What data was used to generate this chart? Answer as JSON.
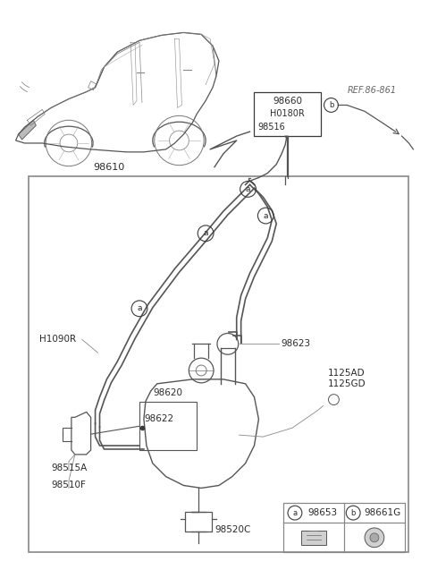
{
  "bg": "#ffffff",
  "lc": "#3a3a3a",
  "tc": "#2a2a2a",
  "gc": "#666666",
  "figsize": [
    4.8,
    6.56
  ],
  "dpi": 100,
  "car_label": "98610",
  "top_box_labels": [
    "98660",
    "H0180R",
    "98516"
  ],
  "ref_label": "REF.86-861",
  "h1090r": "H1090R",
  "label_98623": "98623",
  "label_1125AD": "1125AD",
  "label_1125GD": "1125GD",
  "label_98620": "98620",
  "label_98622": "98622",
  "label_98515A": "98515A",
  "label_98510F": "98510F",
  "label_98520C": "98520C",
  "leg_a_label": "98653",
  "leg_b_label": "98661G"
}
